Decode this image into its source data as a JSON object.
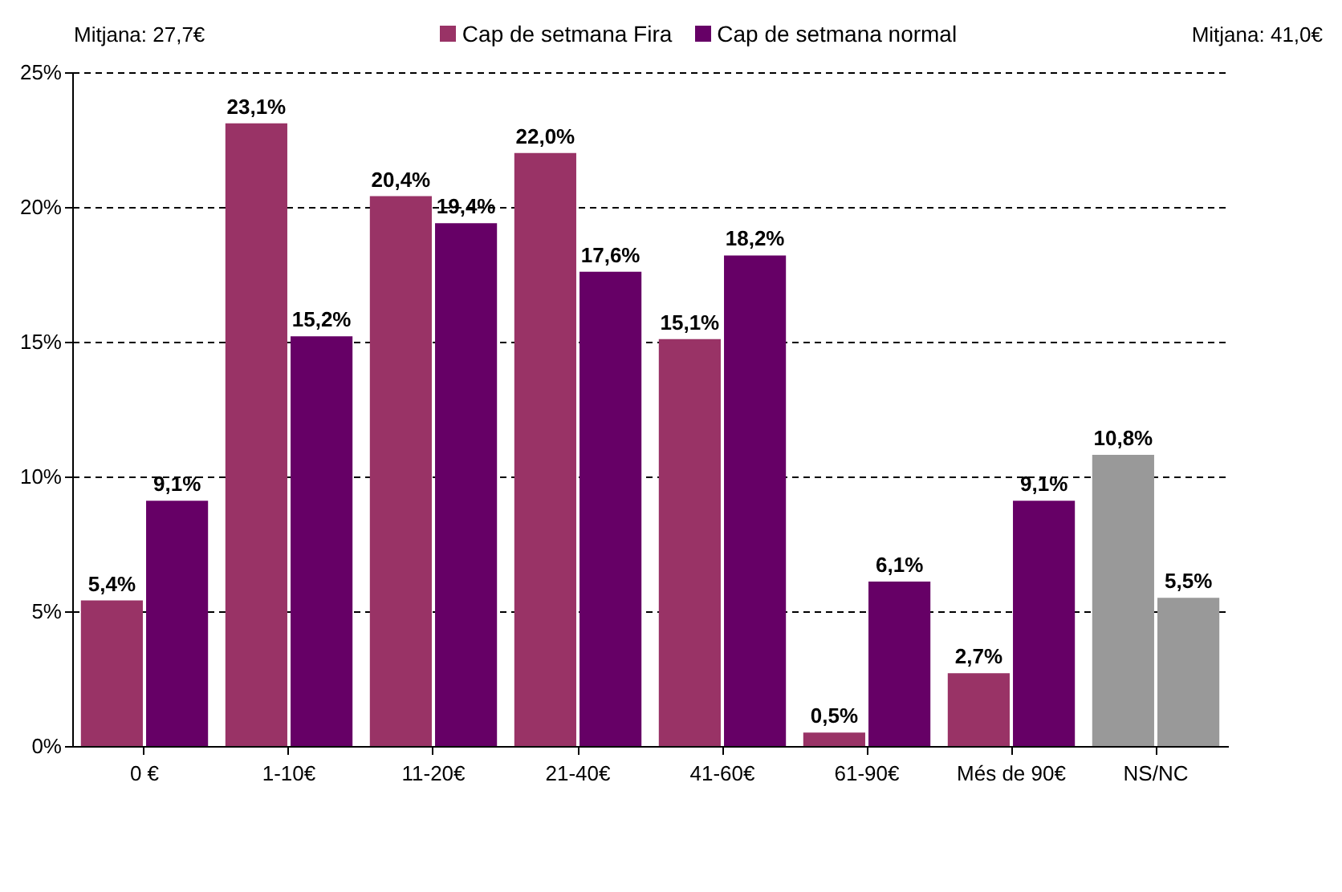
{
  "chart_data": {
    "type": "bar",
    "categories": [
      "0 €",
      "1-10€",
      "11-20€",
      "21-40€",
      "41-60€",
      "61-90€",
      "Més de 90€",
      "NS/NC"
    ],
    "series": [
      {
        "name": "Cap de setmana Fira",
        "color": "#993366",
        "colors": [
          "#993366",
          "#993366",
          "#993366",
          "#993366",
          "#993366",
          "#993366",
          "#993366",
          "#999999"
        ],
        "values": [
          5.4,
          23.1,
          20.4,
          22.0,
          15.1,
          0.5,
          2.7,
          10.8
        ],
        "value_labels": [
          "5,4%",
          "23,1%",
          "20,4%",
          "22,0%",
          "15,1%",
          "0,5%",
          "2,7%",
          "10,8%"
        ]
      },
      {
        "name": "Cap de setmana normal",
        "color": "#660066",
        "colors": [
          "#660066",
          "#660066",
          "#660066",
          "#660066",
          "#660066",
          "#660066",
          "#660066",
          "#999999"
        ],
        "values": [
          9.1,
          15.2,
          19.4,
          17.6,
          18.2,
          6.1,
          9.1,
          5.5
        ],
        "value_labels": [
          "9,1%",
          "15,2%",
          "19,4%",
          "17,6%",
          "18,2%",
          "6,1%",
          "9,1%",
          "5,5%"
        ]
      }
    ],
    "ylim": [
      0,
      25
    ],
    "yticks": [
      {
        "value": 0,
        "label": "0%"
      },
      {
        "value": 5,
        "label": "5%"
      },
      {
        "value": 10,
        "label": "10%"
      },
      {
        "value": 15,
        "label": "15%"
      },
      {
        "value": 20,
        "label": "20%"
      },
      {
        "value": 25,
        "label": "25%"
      }
    ],
    "grid": "y",
    "line_style": "dashed",
    "legend": "top",
    "annotations": [
      "Mitjana: 27,7€",
      "Mitjana: 41,0€"
    ]
  }
}
